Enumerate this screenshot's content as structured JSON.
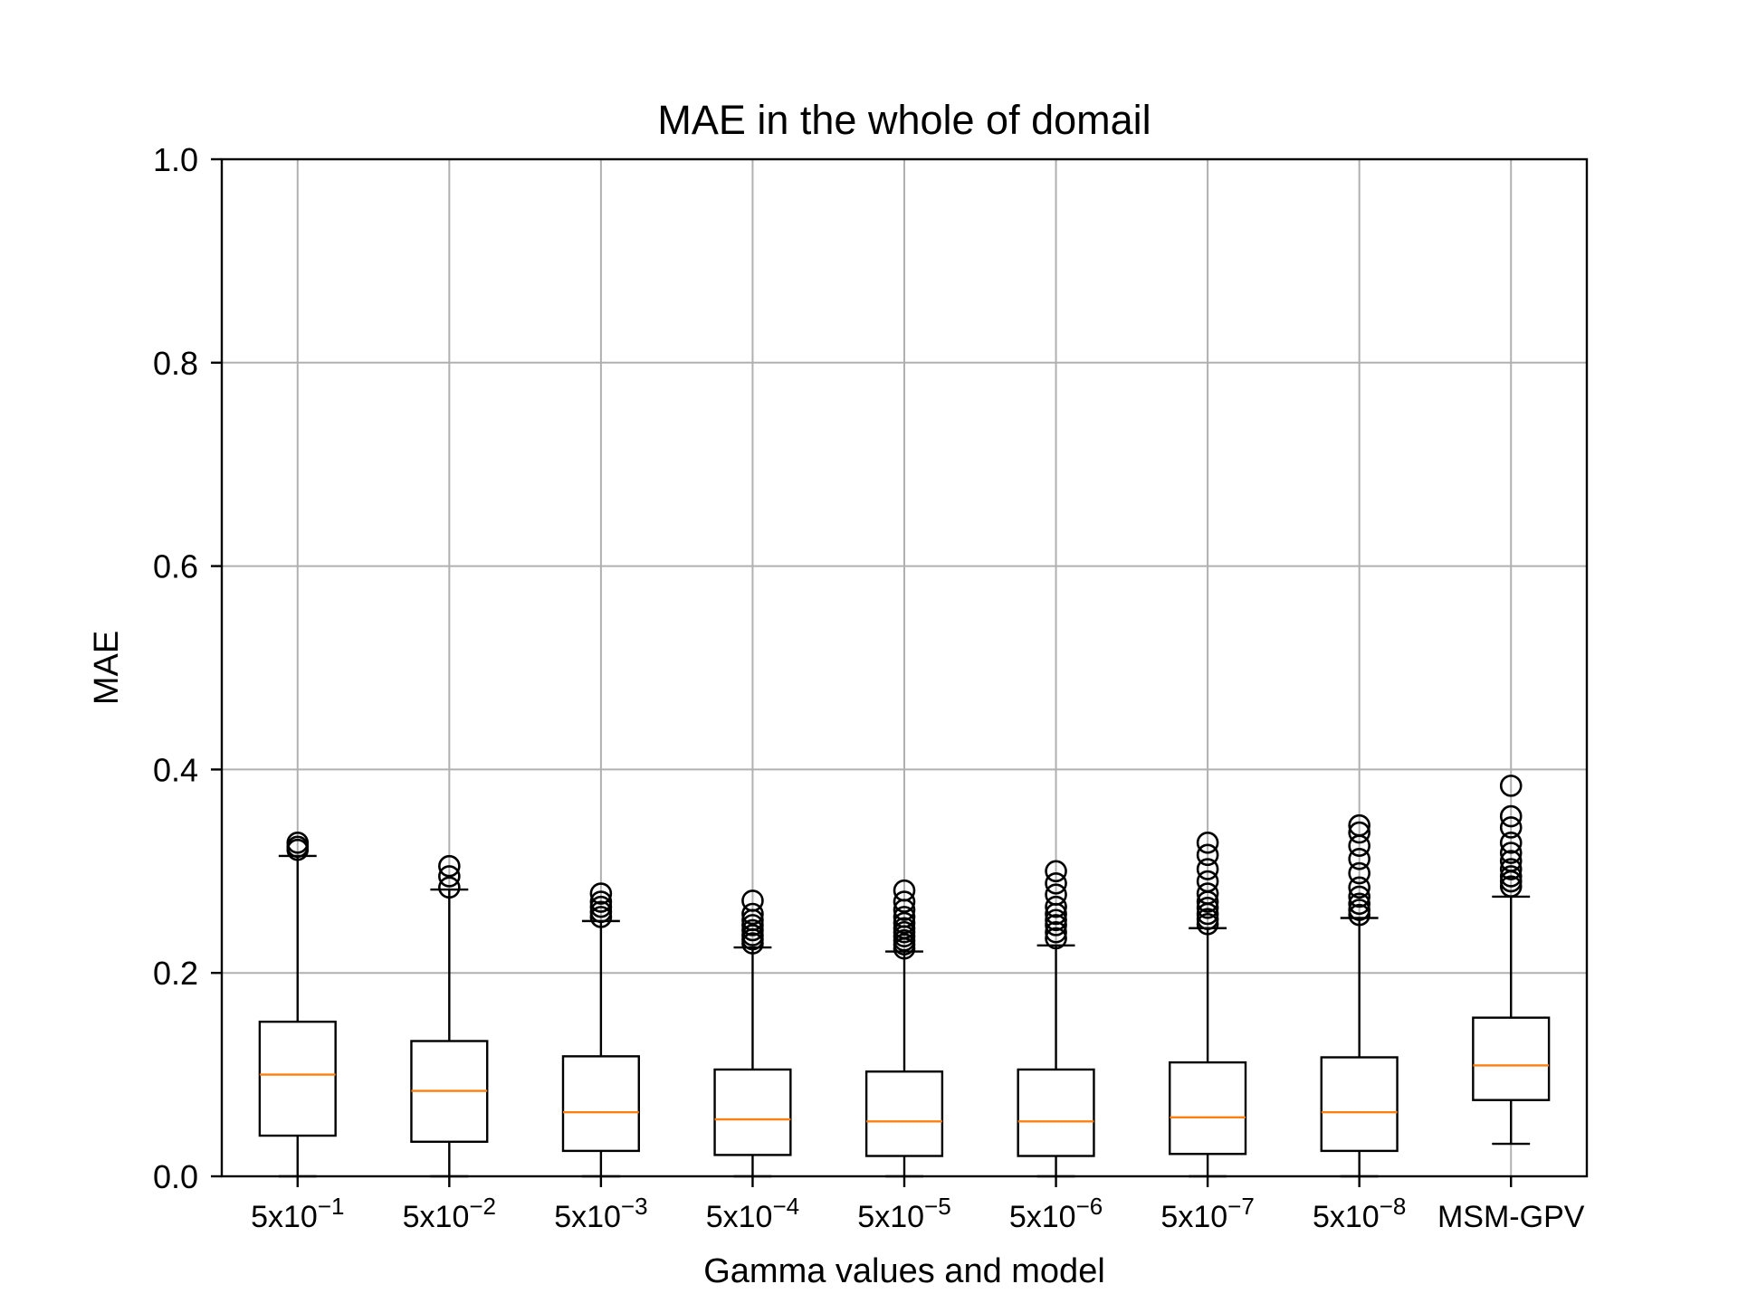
{
  "chart_data": {
    "type": "box",
    "title": "MAE in the whole of domail",
    "xlabel": "Gamma values and model",
    "ylabel": "MAE",
    "ylim": [
      0.0,
      1.0
    ],
    "yticks": [
      "0.0",
      "0.2",
      "0.4",
      "0.6",
      "0.8",
      "1.0"
    ],
    "grid": true,
    "categories": [
      {
        "base": "5x10",
        "exp": "−1"
      },
      {
        "base": "5x10",
        "exp": "−2"
      },
      {
        "base": "5x10",
        "exp": "−3"
      },
      {
        "base": "5x10",
        "exp": "−4"
      },
      {
        "base": "5x10",
        "exp": "−5"
      },
      {
        "base": "5x10",
        "exp": "−6"
      },
      {
        "base": "5x10",
        "exp": "−7"
      },
      {
        "base": "5x10",
        "exp": "−8"
      },
      {
        "base": "MSM-GPV",
        "exp": ""
      }
    ],
    "boxes": [
      {
        "whislo": 0.0,
        "q1": 0.04,
        "med": 0.1,
        "q3": 0.152,
        "whishi": 0.315,
        "fliers": [
          0.321,
          0.324,
          0.328
        ]
      },
      {
        "whislo": 0.0,
        "q1": 0.034,
        "med": 0.084,
        "q3": 0.133,
        "whishi": 0.282,
        "fliers": [
          0.284,
          0.295,
          0.305
        ]
      },
      {
        "whislo": 0.0,
        "q1": 0.025,
        "med": 0.063,
        "q3": 0.118,
        "whishi": 0.251,
        "fliers": [
          0.255,
          0.26,
          0.265,
          0.27,
          0.278
        ]
      },
      {
        "whislo": 0.0,
        "q1": 0.021,
        "med": 0.056,
        "q3": 0.105,
        "whishi": 0.225,
        "fliers": [
          0.229,
          0.233,
          0.237,
          0.242,
          0.247,
          0.252,
          0.258,
          0.271
        ]
      },
      {
        "whislo": 0.0,
        "q1": 0.02,
        "med": 0.054,
        "q3": 0.103,
        "whishi": 0.221,
        "fliers": [
          0.224,
          0.228,
          0.232,
          0.236,
          0.24,
          0.244,
          0.249,
          0.255,
          0.262,
          0.27,
          0.281
        ]
      },
      {
        "whislo": 0.0,
        "q1": 0.02,
        "med": 0.054,
        "q3": 0.105,
        "whishi": 0.227,
        "fliers": [
          0.234,
          0.24,
          0.247,
          0.252,
          0.258,
          0.265,
          0.277,
          0.288,
          0.3
        ]
      },
      {
        "whislo": 0.0,
        "q1": 0.022,
        "med": 0.058,
        "q3": 0.112,
        "whishi": 0.244,
        "fliers": [
          0.248,
          0.253,
          0.258,
          0.264,
          0.27,
          0.278,
          0.29,
          0.302,
          0.316,
          0.328
        ]
      },
      {
        "whislo": 0.0,
        "q1": 0.025,
        "med": 0.063,
        "q3": 0.117,
        "whishi": 0.254,
        "fliers": [
          0.257,
          0.262,
          0.268,
          0.275,
          0.284,
          0.298,
          0.312,
          0.325,
          0.338,
          0.345
        ]
      },
      {
        "whislo": 0.032,
        "q1": 0.075,
        "med": 0.109,
        "q3": 0.156,
        "whishi": 0.275,
        "fliers": [
          0.285,
          0.29,
          0.295,
          0.302,
          0.31,
          0.318,
          0.328,
          0.343,
          0.354,
          0.384
        ]
      }
    ],
    "colors": {
      "box": "#000000",
      "median": "#ff7f0e",
      "grid": "#b0b0b0",
      "axes": "#000000"
    }
  }
}
